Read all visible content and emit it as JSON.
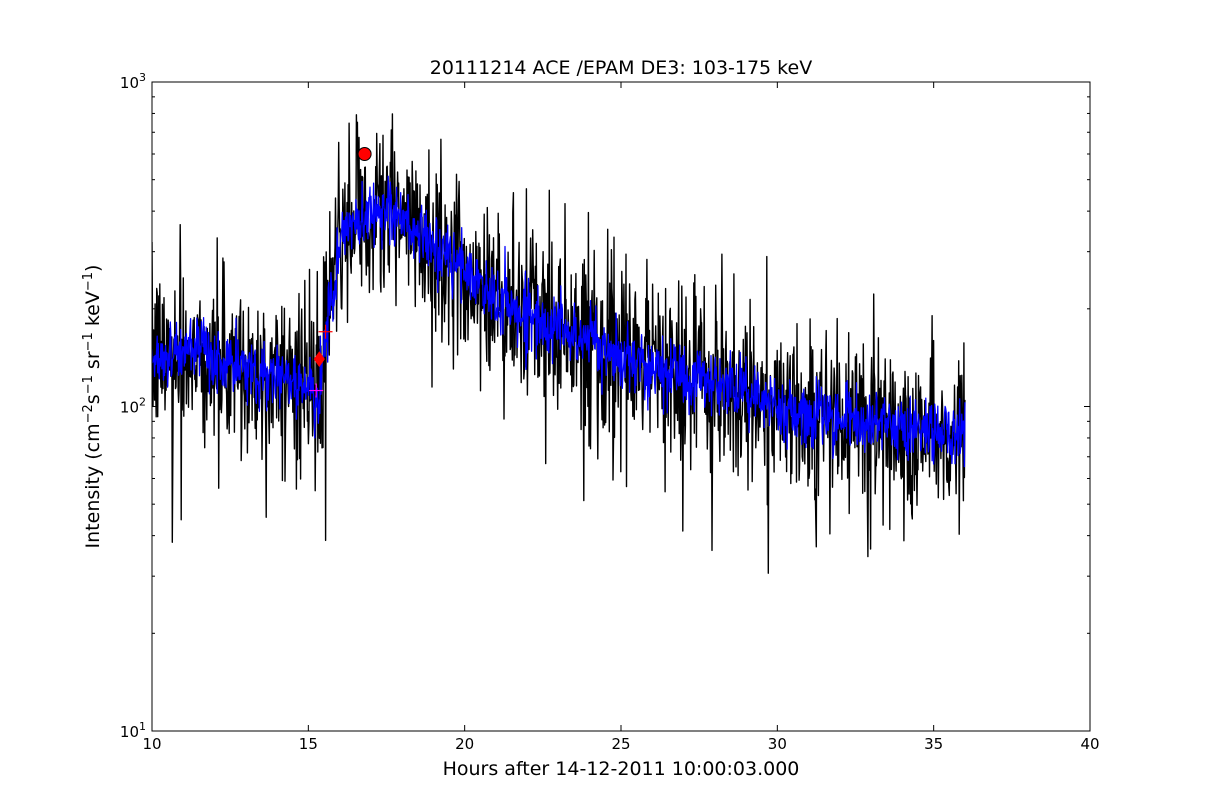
{
  "chart_data": {
    "type": "line",
    "title": "20111214 ACE /EPAM DE3: 103-175 keV",
    "xlabel": "Hours after 14-12-2011 10:00:03.000",
    "ylabel_parts": [
      "Intensity (cm",
      "−2",
      "s",
      "−1",
      " sr",
      "−1",
      " keV",
      "−1",
      ")"
    ],
    "xlim": [
      10,
      40
    ],
    "ylim": [
      10,
      1000
    ],
    "yscale": "log",
    "grid": false,
    "x_ticks": [
      10,
      15,
      20,
      25,
      30,
      35,
      40
    ],
    "x_tick_labels": [
      "10",
      "15",
      "20",
      "25",
      "30",
      "35",
      "40"
    ],
    "y_ticks": [
      10,
      100,
      1000
    ],
    "y_tick_labels": [
      {
        "base": "10",
        "exp": "1"
      },
      {
        "base": "10",
        "exp": "2"
      },
      {
        "base": "10",
        "exp": "3"
      }
    ],
    "series": [
      {
        "color": "#000000",
        "style": "raw",
        "x_range": [
          10,
          36
        ],
        "profile": [
          [
            10.0,
            140
          ],
          [
            11.0,
            150
          ],
          [
            12.0,
            140
          ],
          [
            13.0,
            128
          ],
          [
            14.0,
            125
          ],
          [
            15.0,
            118
          ],
          [
            15.3,
            92
          ],
          [
            15.5,
            155
          ],
          [
            15.8,
            230
          ],
          [
            16.0,
            330
          ],
          [
            16.5,
            360
          ],
          [
            17.0,
            400
          ],
          [
            17.5,
            410
          ],
          [
            18.0,
            370
          ],
          [
            19.0,
            310
          ],
          [
            20.0,
            260
          ],
          [
            21.0,
            215
          ],
          [
            22.0,
            190
          ],
          [
            23.0,
            175
          ],
          [
            24.0,
            160
          ],
          [
            25.0,
            140
          ],
          [
            26.0,
            135
          ],
          [
            27.0,
            125
          ],
          [
            28.0,
            118
          ],
          [
            29.0,
            112
          ],
          [
            30.0,
            100
          ],
          [
            31.0,
            96
          ],
          [
            32.0,
            92
          ],
          [
            33.0,
            88
          ],
          [
            34.0,
            86
          ],
          [
            35.0,
            84
          ],
          [
            36.0,
            82
          ]
        ]
      },
      {
        "color": "#0000ff",
        "style": "smoothed",
        "x_range": [
          10,
          36
        ],
        "profile": [
          [
            10.0,
            140
          ],
          [
            11.0,
            150
          ],
          [
            12.0,
            140
          ],
          [
            13.0,
            128
          ],
          [
            14.0,
            125
          ],
          [
            15.0,
            118
          ],
          [
            15.3,
            92
          ],
          [
            15.5,
            155
          ],
          [
            15.8,
            230
          ],
          [
            16.0,
            330
          ],
          [
            16.5,
            360
          ],
          [
            17.0,
            400
          ],
          [
            17.5,
            410
          ],
          [
            18.0,
            370
          ],
          [
            19.0,
            310
          ],
          [
            20.0,
            260
          ],
          [
            21.0,
            215
          ],
          [
            22.0,
            190
          ],
          [
            23.0,
            175
          ],
          [
            24.0,
            160
          ],
          [
            25.0,
            140
          ],
          [
            26.0,
            135
          ],
          [
            27.0,
            125
          ],
          [
            28.0,
            118
          ],
          [
            29.0,
            112
          ],
          [
            30.0,
            100
          ],
          [
            31.0,
            96
          ],
          [
            32.0,
            92
          ],
          [
            33.0,
            88
          ],
          [
            34.0,
            86
          ],
          [
            35.0,
            84
          ],
          [
            36.0,
            82
          ]
        ]
      }
    ],
    "markers": [
      {
        "shape": "circle",
        "color": "#ff0000",
        "x": 16.8,
        "y": 600
      },
      {
        "shape": "diamond",
        "color": "#ff0000",
        "x": 15.35,
        "y": 140
      },
      {
        "shape": "plus",
        "color": "#ff0000",
        "x": 15.55,
        "y": 170
      },
      {
        "shape": "plus",
        "color": "#ff00ff",
        "x": 15.25,
        "y": 112
      }
    ]
  }
}
